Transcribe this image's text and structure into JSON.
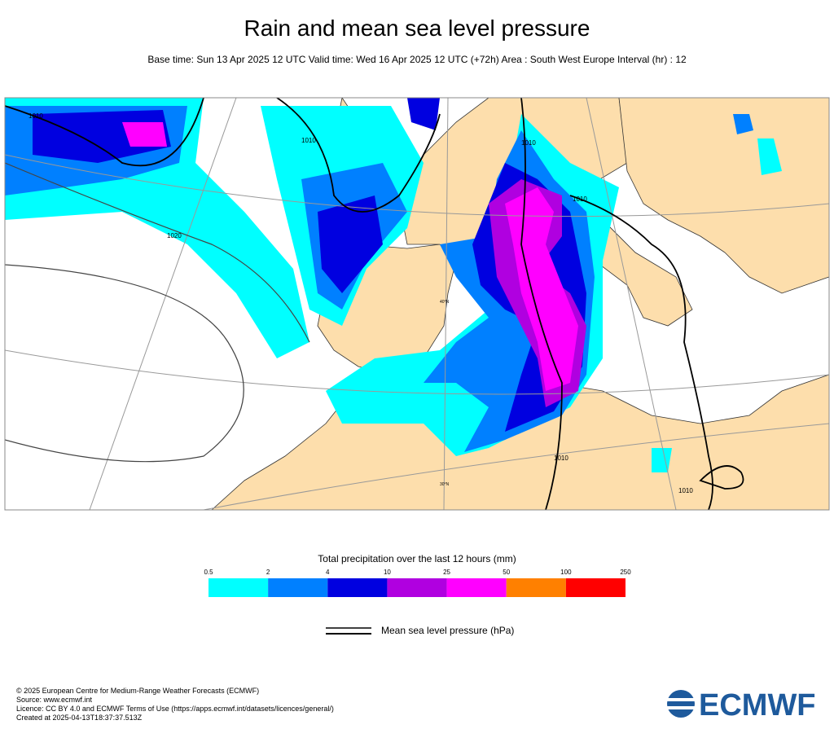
{
  "header": {
    "title": "Rain and mean sea level pressure",
    "subtitle": "Base time: Sun 13 Apr 2025 12 UTC Valid time: Wed 16 Apr 2025 12 UTC (+72h) Area : South West Europe Interval (hr) : 12"
  },
  "map": {
    "isobar_labels": [
      "1010",
      "1020",
      "1010",
      "1010",
      "1010",
      "1010",
      "1010"
    ],
    "latitude_labels": [
      "40°N",
      "30°N"
    ]
  },
  "legend": {
    "title": "Total precipitation over the last 12 hours (mm)",
    "ticks": [
      "0.5",
      "2",
      "4",
      "10",
      "25",
      "50",
      "100",
      "250"
    ],
    "colors": [
      "#00ffff",
      "#0080ff",
      "#0000e0",
      "#b000e0",
      "#ff00ff",
      "#ff8000",
      "#ff0000"
    ],
    "line_label": "Mean sea level pressure (hPa)"
  },
  "footer": {
    "lines": [
      "© 2025 European Centre for Medium-Range Weather Forecasts (ECMWF)",
      "Source: www.ecmwf.int",
      "Licence: CC BY 4.0 and ECMWF Terms of Use (https://apps.ecmwf.int/datasets/licences/general/)",
      "Created at 2025-04-13T18:37:37.513Z"
    ],
    "logo": "ECMWF"
  }
}
